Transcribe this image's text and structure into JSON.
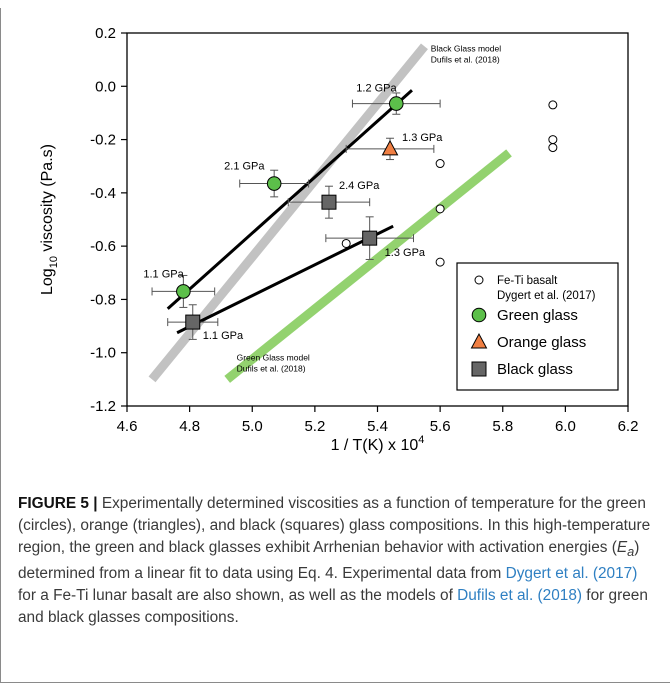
{
  "chart_data": {
    "type": "scatter",
    "xlabel": "1 / T(K) x 10",
    "xlabel_sup": "4",
    "ylabel_pre": "Log",
    "ylabel_sub": "10",
    "ylabel_post": " viscosity (Pa.s)",
    "xlim": [
      4.6,
      6.2
    ],
    "ylim": [
      -1.2,
      0.2
    ],
    "xticks": [
      "4.6",
      "4.8",
      "5.0",
      "5.2",
      "5.4",
      "5.6",
      "5.8",
      "6.0",
      "6.2"
    ],
    "yticks": [
      "0.2",
      "0.0",
      "-0.2",
      "-0.4",
      "-0.6",
      "-0.8",
      "-1.0",
      "-1.2"
    ],
    "grid": false,
    "legend_position": "bottom-right",
    "series": [
      {
        "name": "Fe-Ti basalt",
        "name2": "Dygert et al. (2017)",
        "marker": "circle-open",
        "color": "#ffffff",
        "points": [
          {
            "x": 5.3,
            "y": -0.59
          },
          {
            "x": 5.6,
            "y": -0.29
          },
          {
            "x": 5.6,
            "y": -0.46
          },
          {
            "x": 5.6,
            "y": -0.66
          },
          {
            "x": 5.96,
            "y": -0.07
          },
          {
            "x": 5.96,
            "y": -0.2
          },
          {
            "x": 5.96,
            "y": -0.23
          }
        ]
      },
      {
        "name": "Green glass",
        "marker": "circle",
        "color": "#5cbf4a",
        "points": [
          {
            "x": 4.78,
            "y": -0.77,
            "xerr": 0.1,
            "yerr": 0.06,
            "label": "1.1 GPa"
          },
          {
            "x": 5.07,
            "y": -0.365,
            "xerr": 0.11,
            "yerr": 0.05,
            "label": "2.1 GPa"
          },
          {
            "x": 5.46,
            "y": -0.065,
            "xerr": 0.14,
            "yerr": 0.04,
            "label": "1.2 GPa"
          }
        ],
        "fit": [
          {
            "x": 4.73,
            "y": -0.835
          },
          {
            "x": 5.51,
            "y": -0.015
          }
        ]
      },
      {
        "name": "Orange glass",
        "marker": "triangle",
        "color": "#f07f43",
        "points": [
          {
            "x": 5.44,
            "y": -0.235,
            "xerr": 0.14,
            "yerr": 0.04,
            "label": "1.3 GPa"
          }
        ]
      },
      {
        "name": "Black glass",
        "marker": "square",
        "color": "#666666",
        "points": [
          {
            "x": 4.81,
            "y": -0.885,
            "xerr": 0.08,
            "yerr": 0.065,
            "label": "1.1 GPa"
          },
          {
            "x": 5.245,
            "y": -0.435,
            "xerr": 0.13,
            "yerr": 0.06,
            "label": "2.4 GPa"
          },
          {
            "x": 5.375,
            "y": -0.57,
            "xerr": 0.14,
            "yerr": 0.08,
            "label": "1.3 GPa"
          }
        ],
        "fit": [
          {
            "x": 4.76,
            "y": -0.925
          },
          {
            "x": 5.45,
            "y": -0.525
          }
        ]
      }
    ],
    "models": [
      {
        "label1": "Black Glass model",
        "label2": "Dufils et al. (2018)",
        "color": "#c2c2c2",
        "x": [
          4.68,
          5.55
        ],
        "y": [
          -1.1,
          0.15
        ]
      },
      {
        "label1": "Green Glass model",
        "label2": "Dufils et al. (2018)",
        "color": "#93d26f",
        "x": [
          4.92,
          5.82
        ],
        "y": [
          -1.1,
          -0.25
        ]
      }
    ]
  },
  "caption": {
    "lead": "FIGURE 5 |",
    "p1": " Experimentally determined viscosities as a function of temperature for the green (circles), orange (triangles), and black (squares) glass compositions. In this high-temperature region, the green and black glasses exhibit Arrhenian behavior with activation energies (",
    "ea": "E",
    "ea_sub": "a",
    "p2": ") determined from a linear fit to data using Eq. 4. Experimental data from ",
    "cite1": "Dygert et al. (2017)",
    "p3": " for a Fe-Ti lunar basalt are also shown, as well as the models of ",
    "cite2": "Dufils et al. (2018)",
    "p4": " for green and black glasses compositions."
  }
}
